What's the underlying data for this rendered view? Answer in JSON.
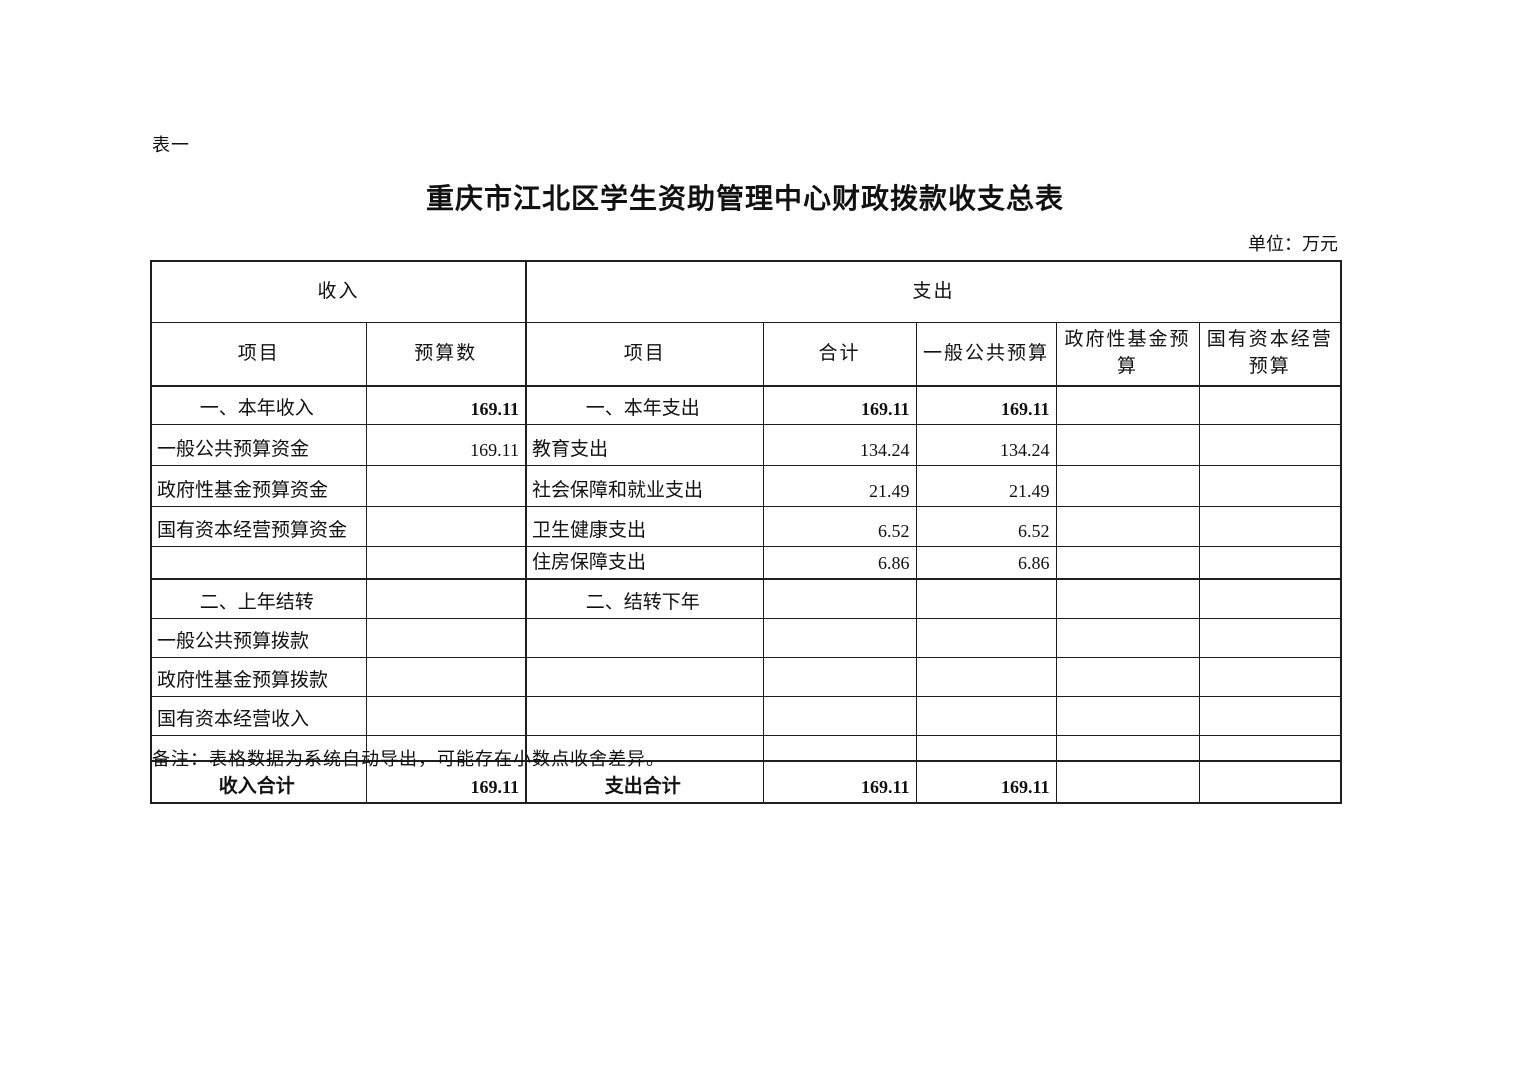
{
  "page": {
    "table_tag": "表一",
    "title": "重庆市江北区学生资助管理中心财政拨款收支总表",
    "unit_label": "单位：万元",
    "note": "备注：表格数据为系统自动导出，可能存在小数点收舍差异。"
  },
  "colors": {
    "border": "#1f1f1f",
    "text": "#111111",
    "background": "#ffffff"
  },
  "table": {
    "income_header": "收入",
    "expense_header": "支出",
    "columns": [
      "项目",
      "预算数",
      "项目",
      "合计",
      "一般公共预算",
      "政府性基金预算",
      "国有资本经营预算"
    ],
    "rows": [
      {
        "income_item": "一、本年收入",
        "income_item_align": "center",
        "income_budget": "169.11",
        "expense_item": "一、本年支出",
        "expense_item_align": "center",
        "total": "169.11",
        "general_public_budget": "169.11",
        "gov_fund_budget": "",
        "state_capital_budget": "",
        "bold": "values",
        "section_start": false
      },
      {
        "income_item": "一般公共预算资金",
        "income_item_align": "left",
        "income_budget": "169.11",
        "expense_item": "教育支出",
        "expense_item_align": "left",
        "total": "134.24",
        "general_public_budget": "134.24",
        "gov_fund_budget": "",
        "state_capital_budget": "",
        "bold": "none",
        "section_start": false
      },
      {
        "income_item": "政府性基金预算资金",
        "income_item_align": "left",
        "income_budget": "",
        "expense_item": "社会保障和就业支出",
        "expense_item_align": "left",
        "total": "21.49",
        "general_public_budget": "21.49",
        "gov_fund_budget": "",
        "state_capital_budget": "",
        "bold": "none",
        "section_start": false
      },
      {
        "income_item": "国有资本经营预算资金",
        "income_item_align": "left",
        "income_budget": "",
        "expense_item": "卫生健康支出",
        "expense_item_align": "left",
        "total": "6.52",
        "general_public_budget": "6.52",
        "gov_fund_budget": "",
        "state_capital_budget": "",
        "bold": "none",
        "section_start": false
      },
      {
        "income_item": "",
        "income_item_align": "left",
        "income_budget": "",
        "expense_item": "住房保障支出",
        "expense_item_align": "left",
        "total": "6.86",
        "general_public_budget": "6.86",
        "gov_fund_budget": "",
        "state_capital_budget": "",
        "bold": "none",
        "section_start": false
      },
      {
        "income_item": "二、上年结转",
        "income_item_align": "center",
        "income_budget": "",
        "expense_item": "二、结转下年",
        "expense_item_align": "center",
        "total": "",
        "general_public_budget": "",
        "gov_fund_budget": "",
        "state_capital_budget": "",
        "bold": "none",
        "section_start": true
      },
      {
        "income_item": "一般公共预算拨款",
        "income_item_align": "left",
        "income_budget": "",
        "expense_item": "",
        "expense_item_align": "left",
        "total": "",
        "general_public_budget": "",
        "gov_fund_budget": "",
        "state_capital_budget": "",
        "bold": "none",
        "section_start": false
      },
      {
        "income_item": "政府性基金预算拨款",
        "income_item_align": "left",
        "income_budget": "",
        "expense_item": "",
        "expense_item_align": "left",
        "total": "",
        "general_public_budget": "",
        "gov_fund_budget": "",
        "state_capital_budget": "",
        "bold": "none",
        "section_start": false
      },
      {
        "income_item": "国有资本经营收入",
        "income_item_align": "left",
        "income_budget": "",
        "expense_item": "",
        "expense_item_align": "left",
        "total": "",
        "general_public_budget": "",
        "gov_fund_budget": "",
        "state_capital_budget": "",
        "bold": "none",
        "section_start": false
      },
      {
        "income_item": "",
        "income_item_align": "left",
        "income_budget": "",
        "expense_item": "",
        "expense_item_align": "left",
        "total": "",
        "general_public_budget": "",
        "gov_fund_budget": "",
        "state_capital_budget": "",
        "bold": "none",
        "section_start": false
      },
      {
        "income_item": "收入合计",
        "income_item_align": "center",
        "income_budget": "169.11",
        "expense_item": "支出合计",
        "expense_item_align": "center",
        "total": "169.11",
        "general_public_budget": "169.11",
        "gov_fund_budget": "",
        "state_capital_budget": "",
        "bold": "all",
        "section_start": true
      }
    ]
  }
}
